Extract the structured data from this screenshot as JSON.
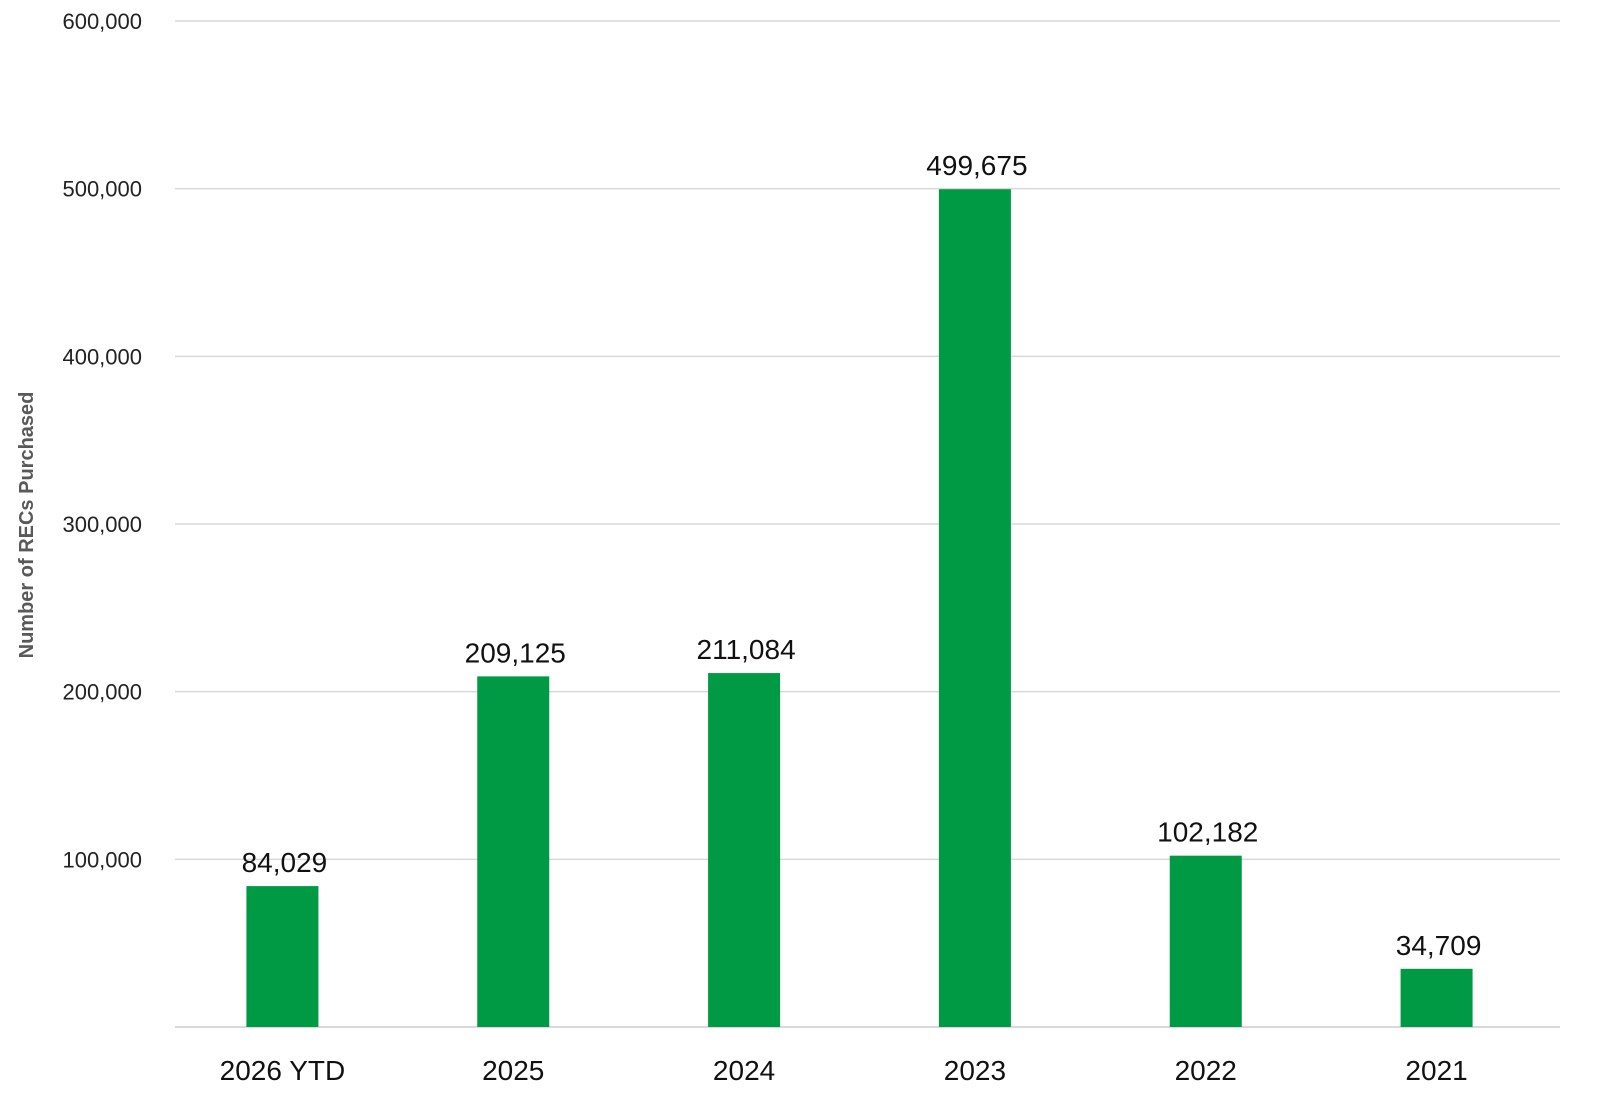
{
  "chart_data": {
    "type": "bar",
    "categories": [
      "2026 YTD",
      "2025",
      "2024",
      "2023",
      "2022",
      "2021"
    ],
    "values": [
      84029,
      209125,
      211084,
      499675,
      102182,
      34709
    ],
    "data_labels": [
      "84,029",
      "209,125",
      "211,084",
      "499,675",
      "102,182",
      "34,709"
    ],
    "title": "",
    "xlabel": "",
    "ylabel": "Number of RECs Purchased",
    "ylim": [
      0,
      600000
    ],
    "yticks": [
      100000,
      200000,
      300000,
      400000,
      500000,
      600000
    ],
    "ytick_labels": [
      "100,000",
      "200,000",
      "300,000",
      "400,000",
      "500,000",
      "600,000"
    ],
    "grid": true,
    "legend": "none",
    "bar_color": "#009a44"
  }
}
